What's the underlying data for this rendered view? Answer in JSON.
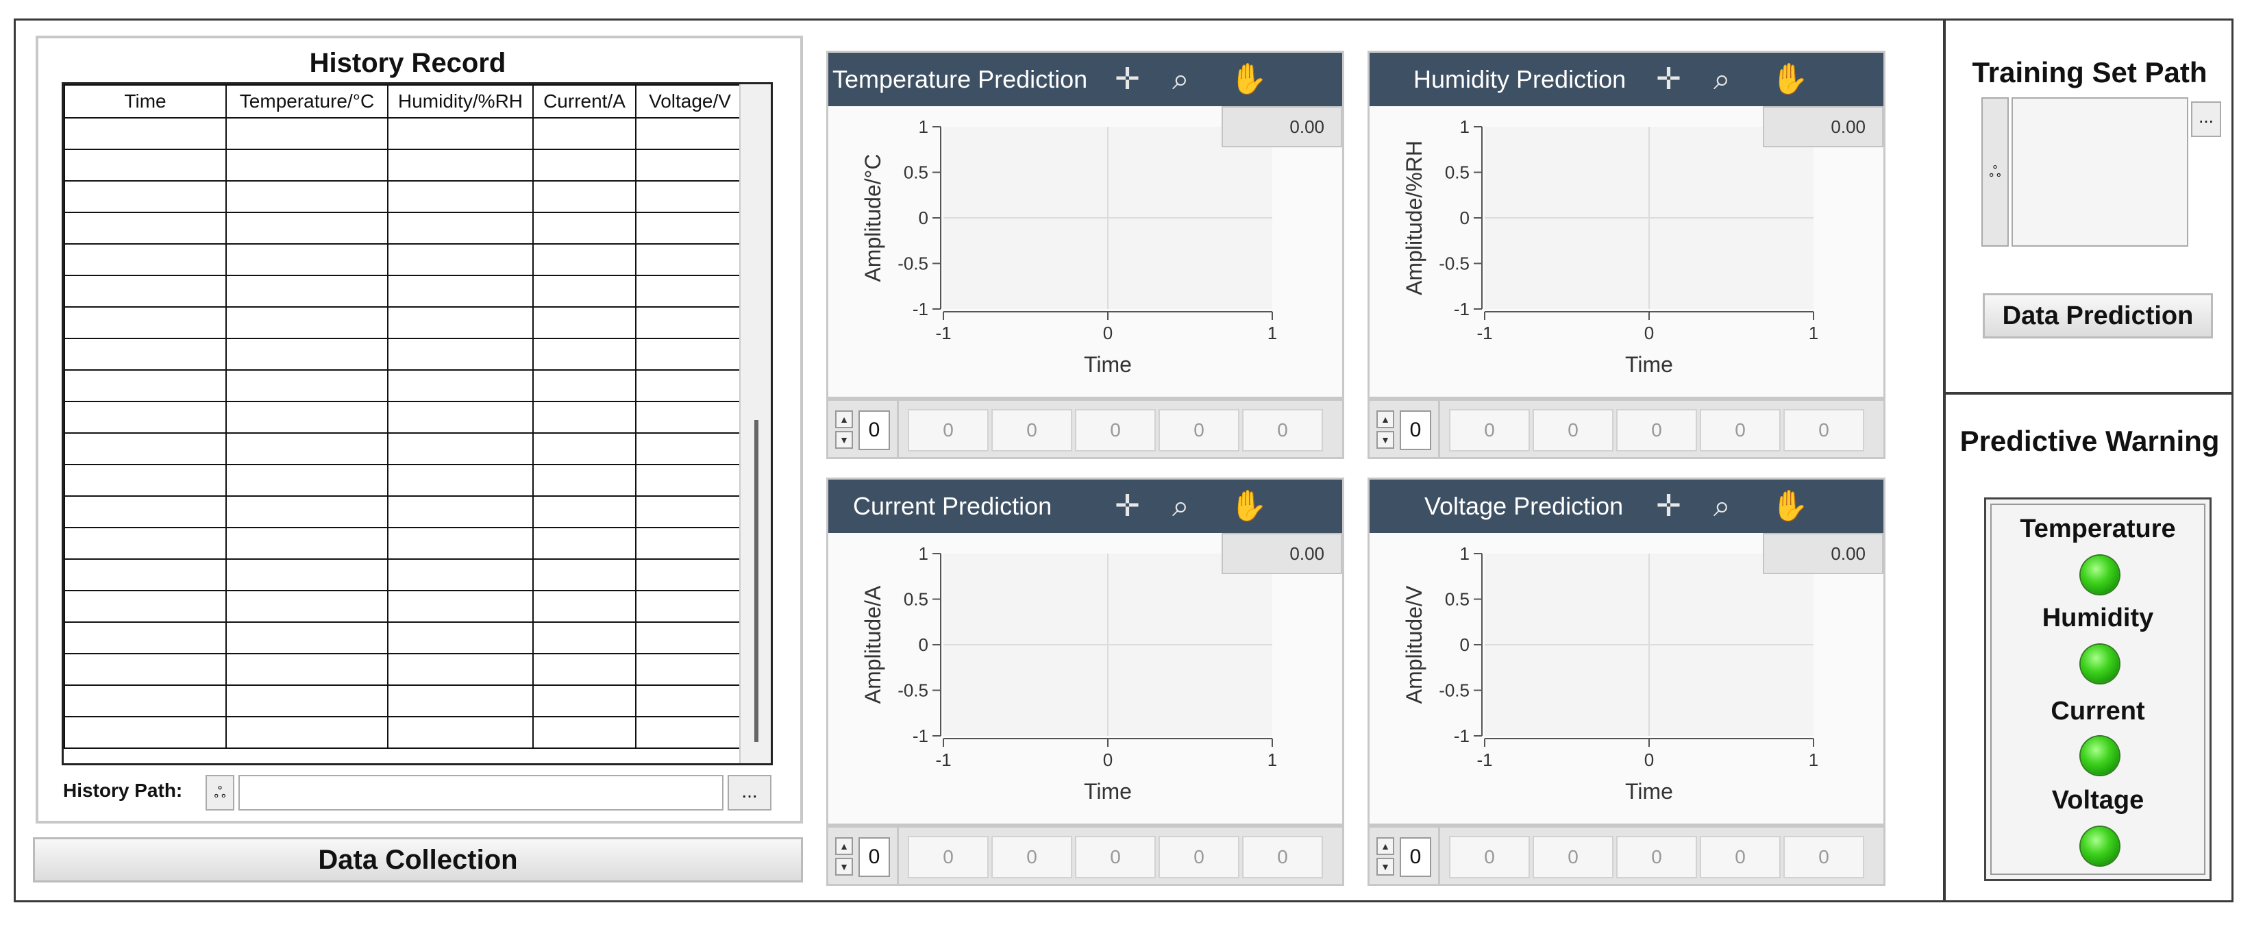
{
  "history": {
    "title": "History Record",
    "columns": [
      "Time",
      "Temperature/°C",
      "Humidity/%RH",
      "Current/A",
      "Voltage/V"
    ],
    "row_count": 20,
    "path_label": "History Path:",
    "path_value": "",
    "browse_glyph": "ஃ",
    "dots": "..."
  },
  "data_collection_button": "Data Collection",
  "charts": [
    {
      "title": "Temperature Prediction",
      "ylabel": "Amplitude/°C",
      "xlabel": "Time",
      "readout": "0.00",
      "index": "0",
      "values": [
        "0",
        "0",
        "0",
        "0",
        "0"
      ]
    },
    {
      "title": "Humidity Prediction",
      "ylabel": "Amplitude/%RH",
      "xlabel": "Time",
      "readout": "0.00",
      "index": "0",
      "values": [
        "0",
        "0",
        "0",
        "0",
        "0"
      ]
    },
    {
      "title": "Current Prediction",
      "ylabel": "Amplitude/A",
      "xlabel": "Time",
      "readout": "0.00",
      "index": "0",
      "values": [
        "0",
        "0",
        "0",
        "0",
        "0"
      ]
    },
    {
      "title": "Voltage Prediction",
      "ylabel": "Amplitude/V",
      "xlabel": "Time",
      "readout": "0.00",
      "index": "0",
      "values": [
        "0",
        "0",
        "0",
        "0",
        "0"
      ]
    }
  ],
  "chart_data": [
    {
      "type": "line",
      "title": "Temperature Prediction",
      "xlabel": "Time",
      "ylabel": "Amplitude/°C",
      "xlim": [
        -1,
        1
      ],
      "ylim": [
        -1,
        1
      ],
      "xticks": [
        "-1",
        "0",
        "1"
      ],
      "yticks": [
        "1",
        "0.5",
        "0",
        "-0.5",
        "-1"
      ],
      "series": [],
      "grid": true
    },
    {
      "type": "line",
      "title": "Humidity Prediction",
      "xlabel": "Time",
      "ylabel": "Amplitude/%RH",
      "xlim": [
        -1,
        1
      ],
      "ylim": [
        -1,
        1
      ],
      "xticks": [
        "-1",
        "0",
        "1"
      ],
      "yticks": [
        "1",
        "0.5",
        "0",
        "-0.5",
        "-1"
      ],
      "series": [],
      "grid": true
    },
    {
      "type": "line",
      "title": "Current Prediction",
      "xlabel": "Time",
      "ylabel": "Amplitude/A",
      "xlim": [
        -1,
        1
      ],
      "ylim": [
        -1,
        1
      ],
      "xticks": [
        "-1",
        "0",
        "1"
      ],
      "yticks": [
        "1",
        "0.5",
        "0",
        "-0.5",
        "-1"
      ],
      "series": [],
      "grid": true
    },
    {
      "type": "line",
      "title": "Voltage Prediction",
      "xlabel": "Time",
      "ylabel": "Amplitude/V",
      "xlim": [
        -1,
        1
      ],
      "ylim": [
        -1,
        1
      ],
      "xticks": [
        "-1",
        "0",
        "1"
      ],
      "yticks": [
        "1",
        "0.5",
        "0",
        "-0.5",
        "-1"
      ],
      "series": [],
      "grid": true
    }
  ],
  "training": {
    "title": "Training Set Path",
    "path_value": "",
    "browse_glyph": "ஃ",
    "dots": "...",
    "predict_button": "Data Prediction"
  },
  "warning": {
    "title": "Predictive Warning",
    "leds": [
      {
        "label": "Temperature",
        "state": "on",
        "color": "#3fd21e"
      },
      {
        "label": "Humidity",
        "state": "on",
        "color": "#3fd21e"
      },
      {
        "label": "Current",
        "state": "on",
        "color": "#3fd21e"
      },
      {
        "label": "Voltage",
        "state": "on",
        "color": "#3fd21e"
      }
    ]
  },
  "icons": {
    "crosshair": "crosshair-icon",
    "zoom": "zoom-icon",
    "pan": "pan-hand-icon"
  }
}
